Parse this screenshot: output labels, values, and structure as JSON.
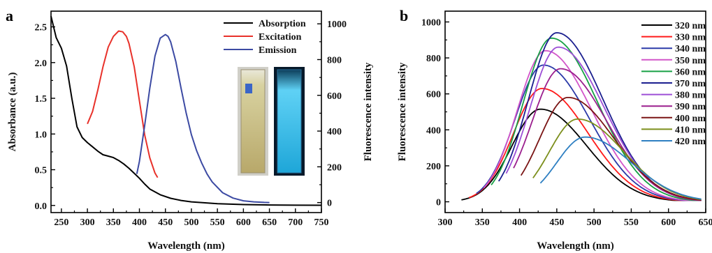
{
  "chart_data": [
    {
      "panel": "a",
      "type": "line",
      "xlabel": "Wavelength (nm)",
      "ylabel": "Absorbance (a.u.)",
      "y2label": "Fluorescence intensity",
      "xlim": [
        230,
        750
      ],
      "ylim": [
        -0.1,
        2.72
      ],
      "y2lim": [
        -56,
        1071
      ],
      "x_ticks": [
        250,
        300,
        350,
        400,
        450,
        500,
        550,
        600,
        650,
        700,
        750
      ],
      "y_ticks": [
        0.0,
        0.5,
        1.0,
        1.5,
        2.0,
        2.5
      ],
      "y2_ticks": [
        0,
        200,
        400,
        600,
        800,
        1000
      ],
      "legend_position": "top-right",
      "series": [
        {
          "name": "Absorption",
          "axis": "left",
          "color": "#000000",
          "x": [
            230,
            240,
            250,
            260,
            270,
            280,
            290,
            300,
            310,
            320,
            330,
            340,
            350,
            360,
            370,
            380,
            390,
            400,
            410,
            420,
            440,
            460,
            480,
            500,
            550,
            600,
            650,
            700,
            750
          ],
          "y": [
            2.65,
            2.35,
            2.2,
            1.95,
            1.5,
            1.1,
            0.95,
            0.88,
            0.82,
            0.76,
            0.71,
            0.69,
            0.67,
            0.63,
            0.58,
            0.52,
            0.45,
            0.38,
            0.3,
            0.23,
            0.15,
            0.1,
            0.07,
            0.05,
            0.025,
            0.012,
            0.006,
            0.003,
            0.002
          ]
        },
        {
          "name": "Excitation",
          "axis": "right",
          "color": "#e8312a",
          "x": [
            300,
            310,
            320,
            330,
            340,
            350,
            360,
            368,
            375,
            380,
            390,
            400,
            410,
            420,
            430,
            435
          ],
          "y": [
            440,
            510,
            630,
            760,
            870,
            930,
            960,
            955,
            930,
            890,
            760,
            570,
            380,
            250,
            165,
            140
          ]
        },
        {
          "name": "Emission",
          "axis": "right",
          "color": "#3c4aa3",
          "x": [
            395,
            400,
            410,
            420,
            430,
            440,
            450,
            455,
            460,
            470,
            480,
            490,
            500,
            510,
            520,
            530,
            540,
            560,
            580,
            600,
            620,
            640,
            650
          ],
          "y": [
            160,
            230,
            430,
            640,
            820,
            920,
            940,
            930,
            900,
            790,
            640,
            500,
            380,
            290,
            220,
            160,
            115,
            55,
            25,
            10,
            4,
            1,
            0
          ]
        }
      ]
    },
    {
      "panel": "b",
      "type": "line",
      "xlabel": "Wavelength (nm)",
      "ylabel": "Fluorescence intensity",
      "xlim": [
        300,
        650
      ],
      "ylim": [
        -60,
        1060
      ],
      "x_ticks": [
        300,
        350,
        400,
        450,
        500,
        550,
        600,
        650
      ],
      "y_ticks": [
        0,
        200,
        400,
        600,
        800,
        1000
      ],
      "legend_position": "top-right",
      "series": [
        {
          "name": "320 nm",
          "color": "#000000",
          "start": 322,
          "peak_x": 428,
          "peak_y": 515
        },
        {
          "name": "330 nm",
          "color": "#ff1a1a",
          "start": 332,
          "peak_x": 430,
          "peak_y": 630
        },
        {
          "name": "340 nm",
          "color": "#2b3aa8",
          "start": 342,
          "peak_x": 432,
          "peak_y": 760
        },
        {
          "name": "350 nm",
          "color": "#d255c9",
          "start": 352,
          "peak_x": 435,
          "peak_y": 840
        },
        {
          "name": "360 nm",
          "color": "#17a045",
          "start": 362,
          "peak_x": 443,
          "peak_y": 910
        },
        {
          "name": "370 nm",
          "color": "#1b1f8f",
          "start": 372,
          "peak_x": 450,
          "peak_y": 940
        },
        {
          "name": "380 nm",
          "color": "#9d4fd6",
          "start": 382,
          "peak_x": 452,
          "peak_y": 860
        },
        {
          "name": "390 nm",
          "color": "#9b1f8e",
          "start": 392,
          "peak_x": 455,
          "peak_y": 740
        },
        {
          "name": "400 nm",
          "color": "#7a1414",
          "start": 402,
          "peak_x": 465,
          "peak_y": 580
        },
        {
          "name": "410 nm",
          "color": "#7c8f1c",
          "start": 418,
          "peak_x": 478,
          "peak_y": 460
        },
        {
          "name": "420 nm",
          "color": "#2e7fc2",
          "start": 428,
          "peak_x": 488,
          "peak_y": 360
        }
      ]
    }
  ],
  "labels": {
    "panel_a": "a",
    "panel_b": "b"
  }
}
